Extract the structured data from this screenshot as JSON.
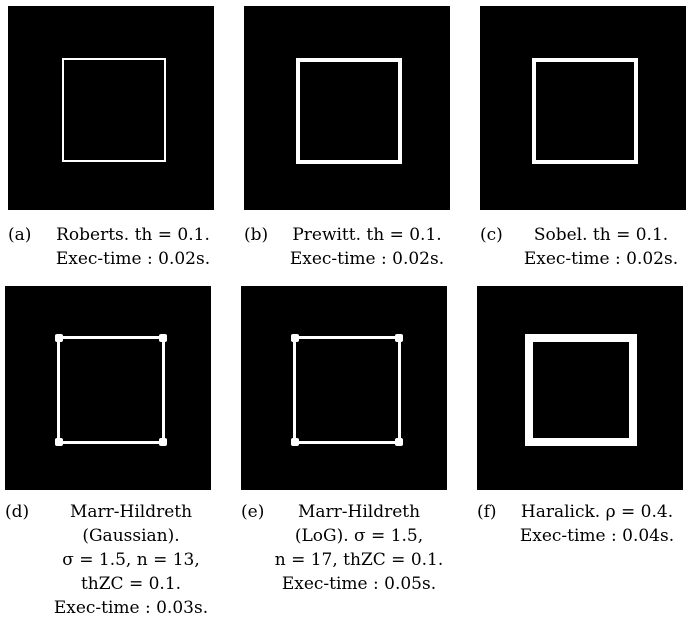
{
  "figures": [
    {
      "tag": "(a)",
      "lines": [
        "Roberts. th = 0.1.",
        "Exec-time : 0.02s."
      ]
    },
    {
      "tag": "(b)",
      "lines": [
        "Prewitt. th = 0.1.",
        "Exec-time : 0.02s."
      ]
    },
    {
      "tag": "(c)",
      "lines": [
        "Sobel. th = 0.1.",
        "Exec-time : 0.02s."
      ]
    },
    {
      "tag": "(d)",
      "lines": [
        "Marr-Hildreth",
        "(Gaussian).",
        "σ = 1.5, n = 13,",
        "thZC = 0.1.",
        "Exec-time : 0.03s."
      ]
    },
    {
      "tag": "(e)",
      "lines": [
        "Marr-Hildreth",
        "(LoG). σ = 1.5,",
        "n = 17, thZC = 0.1.",
        "Exec-time : 0.05s."
      ]
    },
    {
      "tag": "(f)",
      "lines": [
        "Haralick. ρ = 0.4.",
        "Exec-time : 0.04s."
      ]
    }
  ]
}
